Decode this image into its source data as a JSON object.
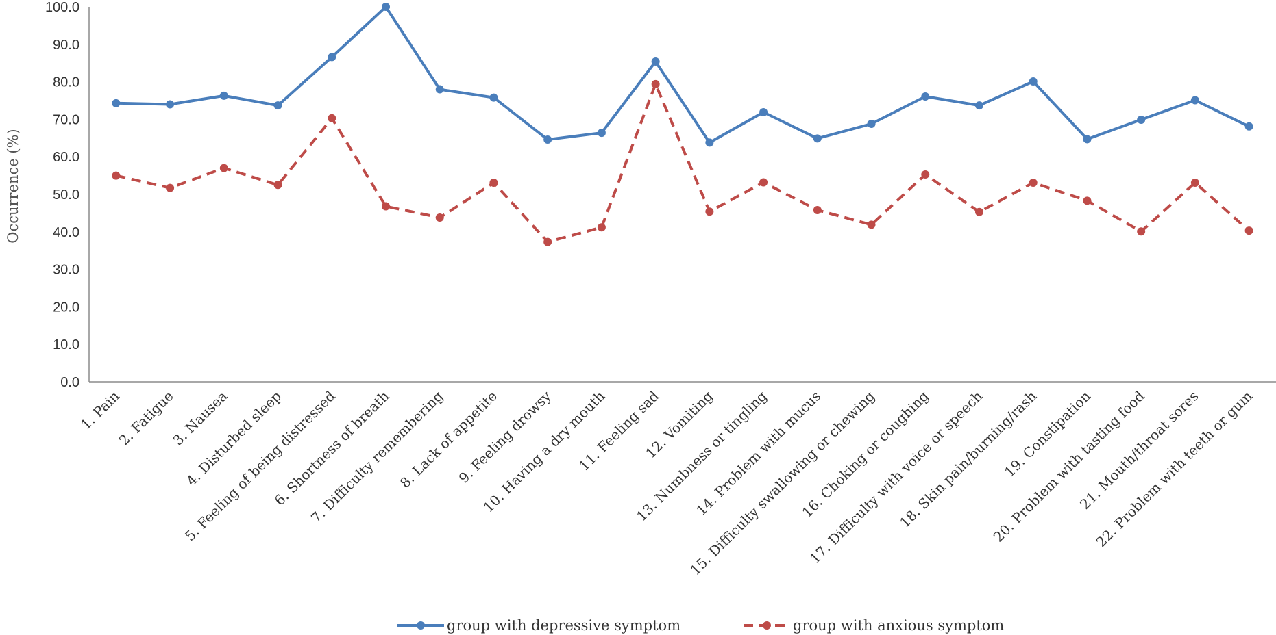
{
  "chart_data": {
    "type": "line",
    "title": "",
    "xlabel": "",
    "ylabel": "Occurrence (%)",
    "ylim": [
      0,
      100
    ],
    "yticks": [
      "0.0",
      "10.0",
      "20.0",
      "30.0",
      "40.0",
      "50.0",
      "60.0",
      "70.0",
      "80.0",
      "90.0",
      "100.0"
    ],
    "grid": false,
    "legend_position": "bottom",
    "categories": [
      "1. Pain",
      "2. Fatigue",
      "3. Nausea",
      "4. Disturbed sleep",
      "5. Feeling of being distressed",
      "6. Shortness of breath",
      "7. Difficulty remembering",
      "8. Lack of appetite",
      "9. Feeling drowsy",
      "10. Having a dry mouth",
      "11. Feeling sad",
      "12. Vomiting",
      "13. Numbness or tingling",
      "14. Problem with mucus",
      "15. Difficulty swallowing or chewing",
      "16. Choking or coughing",
      "17. Difficulty with voice or speech",
      "18. Skin pain/burning/rash",
      "19. Constipation",
      "20. Problem with tasting food",
      "21. Mouth/throat sores",
      "22. Problem with teeth or gum"
    ],
    "series": [
      {
        "name": "group with depressive symptom",
        "color": "#4a7ebb",
        "style": "solid",
        "values": [
          74.3,
          74.0,
          76.3,
          73.7,
          86.6,
          100.0,
          78.0,
          75.8,
          64.6,
          66.4,
          85.4,
          63.8,
          71.9,
          64.9,
          68.8,
          76.1,
          73.7,
          80.1,
          64.7,
          69.9,
          75.1,
          68.1
        ]
      },
      {
        "name": "group with anxious symptom",
        "color": "#be4b48",
        "style": "dashed",
        "values": [
          55.0,
          51.7,
          57.0,
          52.5,
          70.3,
          46.8,
          43.8,
          53.1,
          37.3,
          41.2,
          79.4,
          45.4,
          53.2,
          45.8,
          41.9,
          55.3,
          45.3,
          53.1,
          48.3,
          40.1,
          53.1,
          40.3
        ]
      }
    ]
  }
}
